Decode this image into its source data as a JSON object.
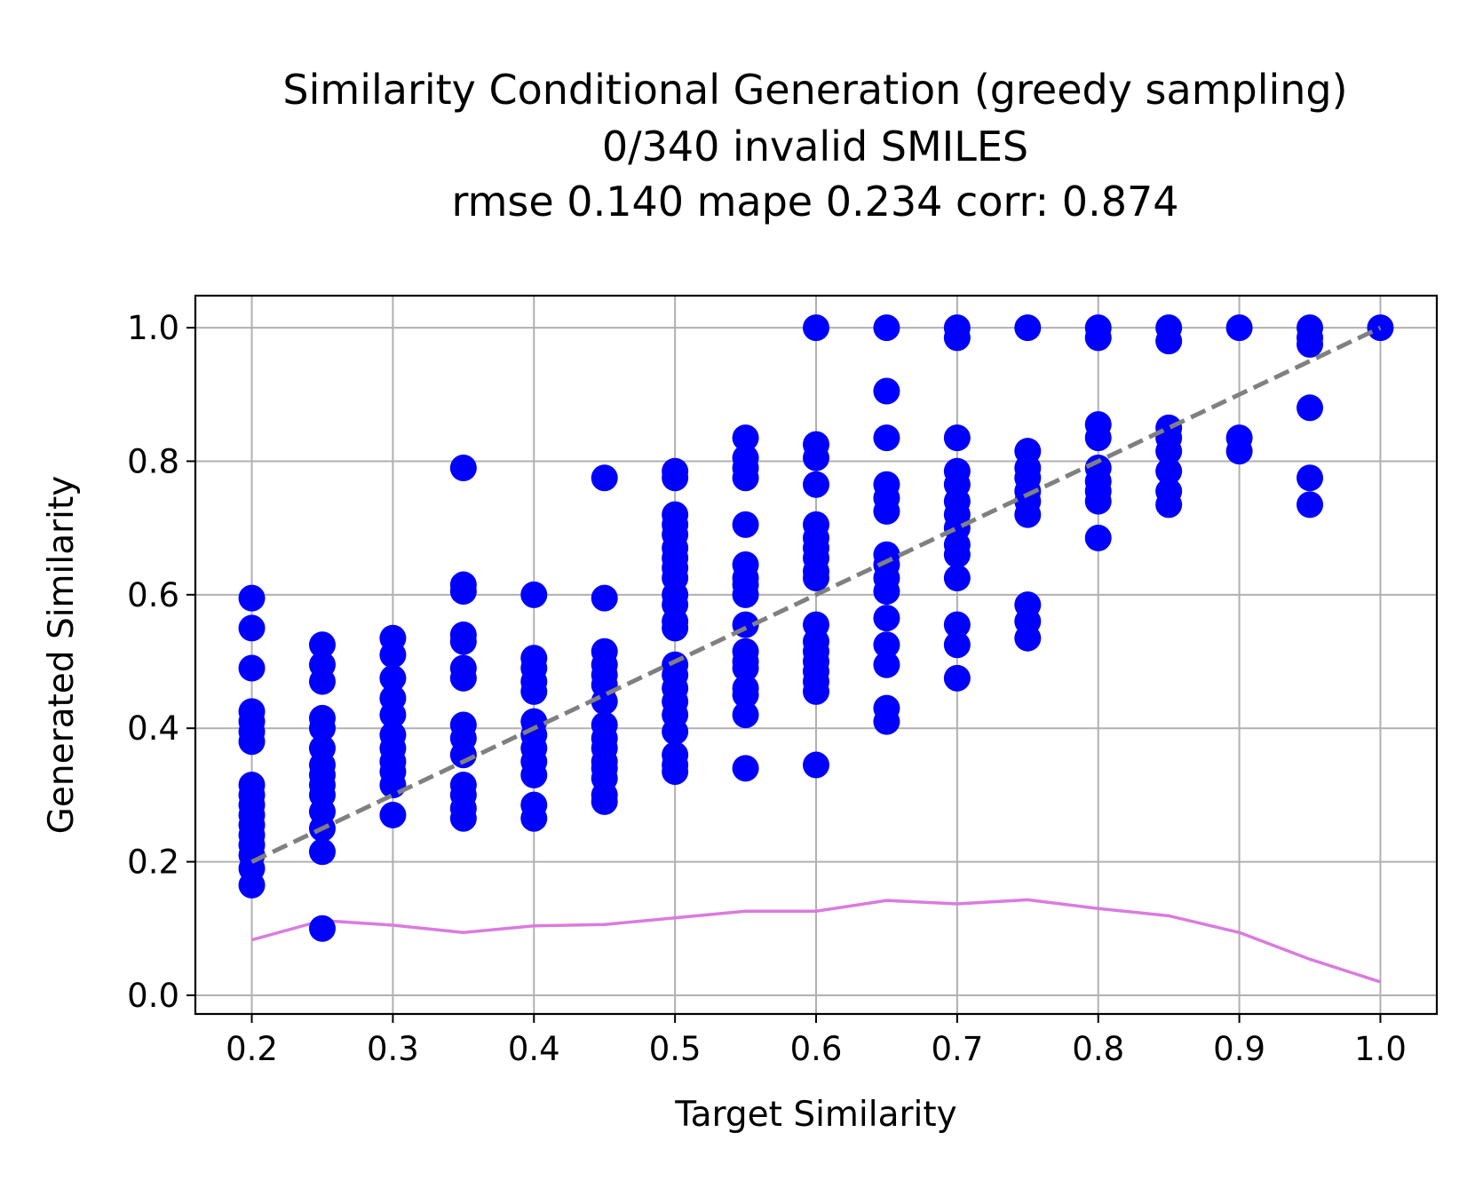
{
  "title_lines": [
    "Similarity Conditional Generation (greedy sampling)",
    "0/340 invalid SMILES",
    "rmse 0.140 mape 0.234 corr: 0.874"
  ],
  "chart_data": {
    "type": "scatter",
    "title": "Similarity Conditional Generation (greedy sampling)\n0/340 invalid SMILES\nrmse 0.140 mape 0.234 corr: 0.874",
    "xlabel": "Target Similarity",
    "ylabel": "Generated Similarity",
    "xlim": [
      0.16,
      1.04
    ],
    "ylim": [
      -0.028,
      1.048
    ],
    "xticks": [
      0.2,
      0.3,
      0.4,
      0.5,
      0.6,
      0.7,
      0.8,
      0.9,
      1.0
    ],
    "xtick_labels": [
      "0.2",
      "0.3",
      "0.4",
      "0.5",
      "0.6",
      "0.7",
      "0.8",
      "0.9",
      "1.0"
    ],
    "yticks": [
      0.0,
      0.2,
      0.4,
      0.6,
      0.8,
      1.0
    ],
    "ytick_labels": [
      "0.0",
      "0.2",
      "0.4",
      "0.6",
      "0.8",
      "1.0"
    ],
    "grid": true,
    "series": [
      {
        "kind": "scatter",
        "color": "#0000ff",
        "points": [
          [
            0.2,
            0.595
          ],
          [
            0.2,
            0.55
          ],
          [
            0.2,
            0.49
          ],
          [
            0.2,
            0.425
          ],
          [
            0.2,
            0.41
          ],
          [
            0.2,
            0.395
          ],
          [
            0.2,
            0.38
          ],
          [
            0.2,
            0.315
          ],
          [
            0.2,
            0.3
          ],
          [
            0.2,
            0.285
          ],
          [
            0.2,
            0.27
          ],
          [
            0.2,
            0.255
          ],
          [
            0.2,
            0.24
          ],
          [
            0.2,
            0.225
          ],
          [
            0.2,
            0.21
          ],
          [
            0.2,
            0.19
          ],
          [
            0.2,
            0.165
          ],
          [
            0.25,
            0.525
          ],
          [
            0.25,
            0.495
          ],
          [
            0.25,
            0.47
          ],
          [
            0.25,
            0.415
          ],
          [
            0.25,
            0.4
          ],
          [
            0.25,
            0.37
          ],
          [
            0.25,
            0.345
          ],
          [
            0.25,
            0.33
          ],
          [
            0.25,
            0.315
          ],
          [
            0.25,
            0.3
          ],
          [
            0.25,
            0.275
          ],
          [
            0.25,
            0.25
          ],
          [
            0.25,
            0.215
          ],
          [
            0.25,
            0.1
          ],
          [
            0.3,
            0.535
          ],
          [
            0.3,
            0.51
          ],
          [
            0.3,
            0.475
          ],
          [
            0.3,
            0.445
          ],
          [
            0.3,
            0.42
          ],
          [
            0.3,
            0.39
          ],
          [
            0.3,
            0.37
          ],
          [
            0.3,
            0.35
          ],
          [
            0.3,
            0.335
          ],
          [
            0.3,
            0.315
          ],
          [
            0.3,
            0.27
          ],
          [
            0.35,
            0.79
          ],
          [
            0.35,
            0.615
          ],
          [
            0.35,
            0.605
          ],
          [
            0.35,
            0.54
          ],
          [
            0.35,
            0.53
          ],
          [
            0.35,
            0.49
          ],
          [
            0.35,
            0.475
          ],
          [
            0.35,
            0.405
          ],
          [
            0.35,
            0.385
          ],
          [
            0.35,
            0.36
          ],
          [
            0.35,
            0.315
          ],
          [
            0.35,
            0.3
          ],
          [
            0.35,
            0.28
          ],
          [
            0.35,
            0.265
          ],
          [
            0.4,
            0.6
          ],
          [
            0.4,
            0.505
          ],
          [
            0.4,
            0.49
          ],
          [
            0.4,
            0.47
          ],
          [
            0.4,
            0.455
          ],
          [
            0.4,
            0.41
          ],
          [
            0.4,
            0.39
          ],
          [
            0.4,
            0.37
          ],
          [
            0.4,
            0.35
          ],
          [
            0.4,
            0.33
          ],
          [
            0.4,
            0.285
          ],
          [
            0.4,
            0.265
          ],
          [
            0.45,
            0.775
          ],
          [
            0.45,
            0.595
          ],
          [
            0.45,
            0.515
          ],
          [
            0.45,
            0.495
          ],
          [
            0.45,
            0.48
          ],
          [
            0.45,
            0.465
          ],
          [
            0.45,
            0.44
          ],
          [
            0.45,
            0.405
          ],
          [
            0.45,
            0.385
          ],
          [
            0.45,
            0.37
          ],
          [
            0.45,
            0.35
          ],
          [
            0.45,
            0.34
          ],
          [
            0.45,
            0.325
          ],
          [
            0.45,
            0.3
          ],
          [
            0.45,
            0.29
          ],
          [
            0.5,
            0.785
          ],
          [
            0.5,
            0.775
          ],
          [
            0.5,
            0.72
          ],
          [
            0.5,
            0.705
          ],
          [
            0.5,
            0.69
          ],
          [
            0.5,
            0.67
          ],
          [
            0.5,
            0.655
          ],
          [
            0.5,
            0.64
          ],
          [
            0.5,
            0.625
          ],
          [
            0.5,
            0.6
          ],
          [
            0.5,
            0.585
          ],
          [
            0.5,
            0.56
          ],
          [
            0.5,
            0.55
          ],
          [
            0.5,
            0.495
          ],
          [
            0.5,
            0.48
          ],
          [
            0.5,
            0.46
          ],
          [
            0.5,
            0.44
          ],
          [
            0.5,
            0.42
          ],
          [
            0.5,
            0.395
          ],
          [
            0.5,
            0.36
          ],
          [
            0.5,
            0.345
          ],
          [
            0.5,
            0.335
          ],
          [
            0.55,
            0.835
          ],
          [
            0.55,
            0.805
          ],
          [
            0.55,
            0.79
          ],
          [
            0.55,
            0.775
          ],
          [
            0.55,
            0.705
          ],
          [
            0.55,
            0.645
          ],
          [
            0.55,
            0.625
          ],
          [
            0.55,
            0.615
          ],
          [
            0.55,
            0.6
          ],
          [
            0.55,
            0.555
          ],
          [
            0.55,
            0.515
          ],
          [
            0.55,
            0.5
          ],
          [
            0.55,
            0.49
          ],
          [
            0.55,
            0.46
          ],
          [
            0.55,
            0.45
          ],
          [
            0.55,
            0.42
          ],
          [
            0.55,
            0.34
          ],
          [
            0.6,
            1.0
          ],
          [
            0.6,
            0.825
          ],
          [
            0.6,
            0.805
          ],
          [
            0.6,
            0.765
          ],
          [
            0.6,
            0.705
          ],
          [
            0.6,
            0.685
          ],
          [
            0.6,
            0.67
          ],
          [
            0.6,
            0.655
          ],
          [
            0.6,
            0.635
          ],
          [
            0.6,
            0.625
          ],
          [
            0.6,
            0.555
          ],
          [
            0.6,
            0.53
          ],
          [
            0.6,
            0.515
          ],
          [
            0.6,
            0.5
          ],
          [
            0.6,
            0.485
          ],
          [
            0.6,
            0.47
          ],
          [
            0.6,
            0.455
          ],
          [
            0.6,
            0.345
          ],
          [
            0.65,
            1.0
          ],
          [
            0.65,
            0.905
          ],
          [
            0.65,
            0.835
          ],
          [
            0.65,
            0.765
          ],
          [
            0.65,
            0.745
          ],
          [
            0.65,
            0.725
          ],
          [
            0.65,
            0.66
          ],
          [
            0.65,
            0.645
          ],
          [
            0.65,
            0.625
          ],
          [
            0.65,
            0.605
          ],
          [
            0.65,
            0.565
          ],
          [
            0.65,
            0.525
          ],
          [
            0.65,
            0.495
          ],
          [
            0.65,
            0.43
          ],
          [
            0.65,
            0.41
          ],
          [
            0.7,
            1.0
          ],
          [
            0.7,
            0.985
          ],
          [
            0.7,
            0.835
          ],
          [
            0.7,
            0.785
          ],
          [
            0.7,
            0.765
          ],
          [
            0.7,
            0.74
          ],
          [
            0.7,
            0.72
          ],
          [
            0.7,
            0.7
          ],
          [
            0.7,
            0.675
          ],
          [
            0.7,
            0.66
          ],
          [
            0.7,
            0.625
          ],
          [
            0.7,
            0.555
          ],
          [
            0.7,
            0.525
          ],
          [
            0.7,
            0.475
          ],
          [
            0.75,
            1.0
          ],
          [
            0.75,
            0.815
          ],
          [
            0.75,
            0.79
          ],
          [
            0.75,
            0.775
          ],
          [
            0.75,
            0.755
          ],
          [
            0.75,
            0.74
          ],
          [
            0.75,
            0.72
          ],
          [
            0.75,
            0.585
          ],
          [
            0.75,
            0.56
          ],
          [
            0.75,
            0.535
          ],
          [
            0.8,
            1.0
          ],
          [
            0.8,
            0.985
          ],
          [
            0.8,
            0.855
          ],
          [
            0.8,
            0.835
          ],
          [
            0.8,
            0.79
          ],
          [
            0.8,
            0.77
          ],
          [
            0.8,
            0.755
          ],
          [
            0.8,
            0.74
          ],
          [
            0.8,
            0.685
          ],
          [
            0.85,
            1.0
          ],
          [
            0.85,
            0.98
          ],
          [
            0.85,
            0.85
          ],
          [
            0.85,
            0.835
          ],
          [
            0.85,
            0.815
          ],
          [
            0.85,
            0.785
          ],
          [
            0.85,
            0.755
          ],
          [
            0.85,
            0.735
          ],
          [
            0.9,
            1.0
          ],
          [
            0.9,
            0.835
          ],
          [
            0.9,
            0.815
          ],
          [
            0.95,
            1.0
          ],
          [
            0.95,
            0.985
          ],
          [
            0.95,
            0.975
          ],
          [
            0.95,
            0.88
          ],
          [
            0.95,
            0.775
          ],
          [
            0.95,
            0.735
          ],
          [
            1.0,
            1.0
          ]
        ]
      },
      {
        "kind": "line",
        "style": "dashed",
        "color": "#808080",
        "x": [
          0.2,
          1.0
        ],
        "y": [
          0.2,
          1.0
        ]
      },
      {
        "kind": "line",
        "style": "solid",
        "color": "#da7bdf",
        "x": [
          0.2,
          0.25,
          0.3,
          0.35,
          0.4,
          0.45,
          0.5,
          0.55,
          0.6,
          0.65,
          0.7,
          0.75,
          0.8,
          0.85,
          0.9,
          0.95,
          1.0
        ],
        "y": [
          0.083,
          0.112,
          0.105,
          0.094,
          0.104,
          0.106,
          0.116,
          0.126,
          0.126,
          0.142,
          0.137,
          0.143,
          0.13,
          0.119,
          0.094,
          0.054,
          0.02
        ]
      }
    ]
  }
}
